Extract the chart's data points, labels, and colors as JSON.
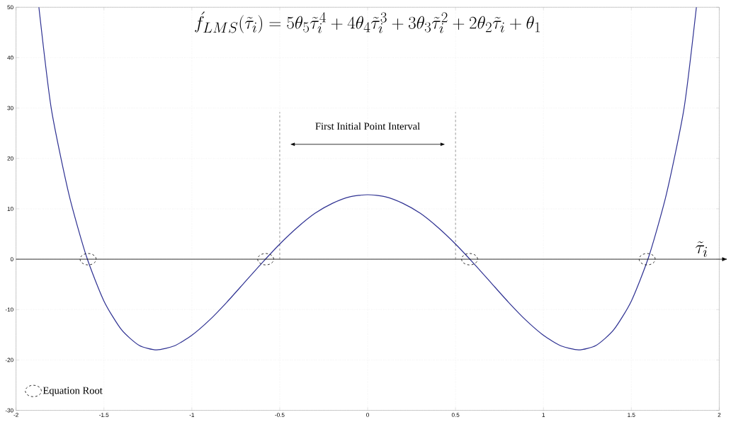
{
  "chart_data": {
    "type": "line",
    "title": "\\acute{f}_{LMS}(\\tilde{\\tau}_i) = 5\\theta_5\\tilde{\\tau}_i^4 + 4\\theta_4\\tilde{\\tau}_i^3 + 3\\theta_3\\tilde{\\tau}_i^2 + 2\\theta_2\\tilde{\\tau}_i + \\theta_1",
    "xlabel": "\\tilde{\\tau}_i",
    "series": [
      {
        "color": "#2e3192",
        "x": [
          -1.87,
          -1.8,
          -1.7,
          -1.6,
          -1.5,
          -1.4,
          -1.3,
          -1.2,
          -1.1,
          -1.0,
          -0.9,
          -0.8,
          -0.7,
          -0.6,
          -0.5,
          -0.4,
          -0.3,
          -0.2,
          -0.1,
          0,
          0.1,
          0.2,
          0.3,
          0.4,
          0.5,
          0.6,
          0.7,
          0.8,
          0.9,
          1.0,
          1.1,
          1.2,
          1.3,
          1.4,
          1.5,
          1.6,
          1.7,
          1.8,
          1.87
        ],
        "values": [
          50,
          30,
          13,
          0.6,
          -8.3,
          -14,
          -17.1,
          -18,
          -17.2,
          -15.1,
          -12.1,
          -8.5,
          -4.6,
          -0.7,
          3,
          6.3,
          9.1,
          11.1,
          12.4,
          12.8,
          12.4,
          11.1,
          9.1,
          6.3,
          3,
          -0.7,
          -4.6,
          -8.5,
          -12.1,
          -15.1,
          -17.2,
          -18,
          -17.1,
          -14,
          -8.3,
          0.6,
          13,
          30,
          50
        ]
      },
      {
        "type": "scatter",
        "name": "Equation Root",
        "color": "#000000",
        "marker": "circle",
        "line_style": "dashed",
        "x": [
          -1.59,
          -0.58,
          0.58,
          1.59
        ],
        "values": [
          0,
          0,
          0,
          0
        ]
      }
    ],
    "xlim": [
      -2,
      2
    ],
    "ylim": [
      -30,
      50
    ],
    "xticks": [
      -2,
      -1.5,
      -1,
      -0.5,
      0,
      0.5,
      1,
      1.5,
      2
    ],
    "yticks": [
      -30,
      -20,
      -10,
      0,
      10,
      20,
      30,
      40,
      50
    ],
    "grid": true,
    "legend": "bottom left",
    "ref_lines": [
      {
        "axis": "y",
        "value": 0,
        "color": "#000000",
        "line_style": "solid"
      },
      {
        "axis": "x",
        "value": -0.5,
        "color": "#000000",
        "line_style": "dashed"
      },
      {
        "axis": "x",
        "value": 0.5,
        "color": "#000000",
        "line_style": "dashed"
      }
    ],
    "annotations": [
      "First Initial Point Interval"
    ]
  }
}
